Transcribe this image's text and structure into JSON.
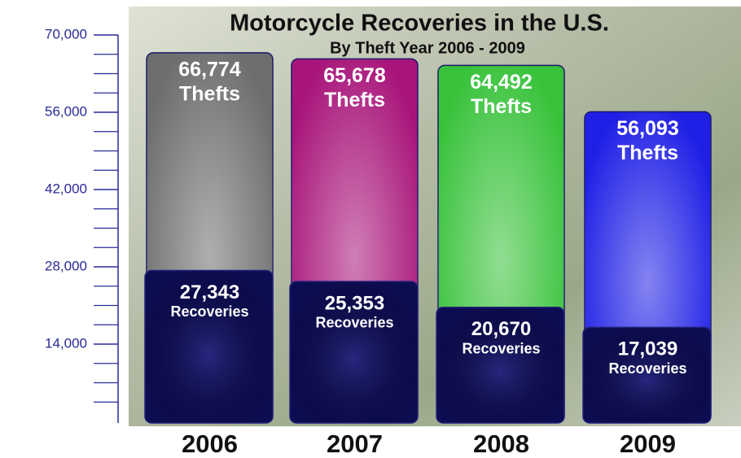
{
  "chart_data": {
    "type": "overlapping-bar",
    "title": "Motorcycle Recoveries in the U.S.",
    "subtitle": "By Theft Year 2006 - 2009",
    "categories": [
      "2006",
      "2007",
      "2008",
      "2009"
    ],
    "series": [
      {
        "name": "Thefts",
        "colors": [
          "#6e6e6e",
          "#a8157a",
          "#38c23a",
          "#1f1fe6"
        ],
        "values": [
          66774,
          65678,
          64492,
          56093
        ],
        "value_labels": [
          "66,774",
          "65,678",
          "64,492",
          "56,093"
        ]
      },
      {
        "name": "Recoveries",
        "color": "#0c0c52",
        "values": [
          27343,
          25353,
          20670,
          17039
        ],
        "value_labels": [
          "27,343",
          "25,353",
          "20,670",
          "17,039"
        ]
      }
    ],
    "ylim": [
      0,
      70000
    ],
    "yticks": [
      {
        "value": 14000,
        "label": "14,000"
      },
      {
        "value": 28000,
        "label": "28,000"
      },
      {
        "value": 42000,
        "label": "42,000"
      },
      {
        "value": 56000,
        "label": "56,000"
      },
      {
        "value": 70000,
        "label": "70,000"
      }
    ],
    "yminorticks": [
      3500,
      7000,
      10500,
      17500,
      21000,
      24500,
      31500,
      35000,
      38500,
      45500,
      49000,
      52500,
      59500,
      63000,
      66500
    ]
  }
}
